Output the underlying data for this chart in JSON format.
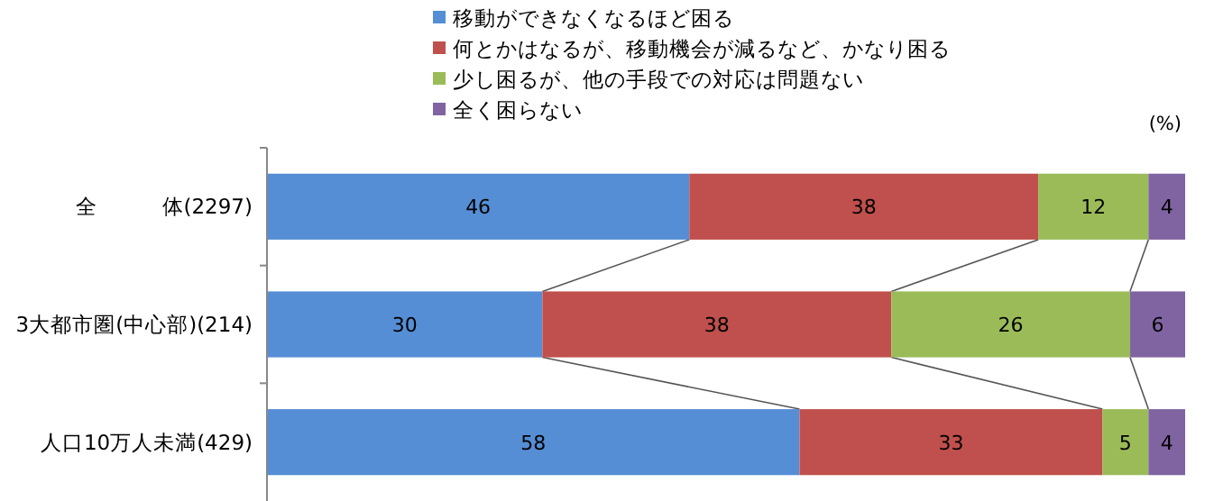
{
  "chart_data": {
    "type": "bar",
    "orientation": "horizontal",
    "stacked": true,
    "categories": [
      "全　　　体(2297)",
      "3大都市圏(中心部)(214)",
      "人口10万人未満(429)"
    ],
    "series": [
      {
        "name": "移動ができなくなるほど困る",
        "color": "#558ed5",
        "values": [
          46,
          30,
          58
        ]
      },
      {
        "name": "何とかはなるが、移動機会が減るなど、かなり困る",
        "color": "#c0504d",
        "values": [
          38,
          38,
          33
        ]
      },
      {
        "name": "少し困るが、他の手段での対応は問題ない",
        "color": "#9bbb59",
        "values": [
          12,
          26,
          5
        ]
      },
      {
        "name": "全く困らない",
        "color": "#8064a2",
        "values": [
          4,
          6,
          4
        ]
      }
    ],
    "xlim": [
      0,
      100
    ],
    "tick_labels": "y",
    "data_labels": true,
    "legend": "top",
    "annotations": [
      "(%)"
    ]
  }
}
